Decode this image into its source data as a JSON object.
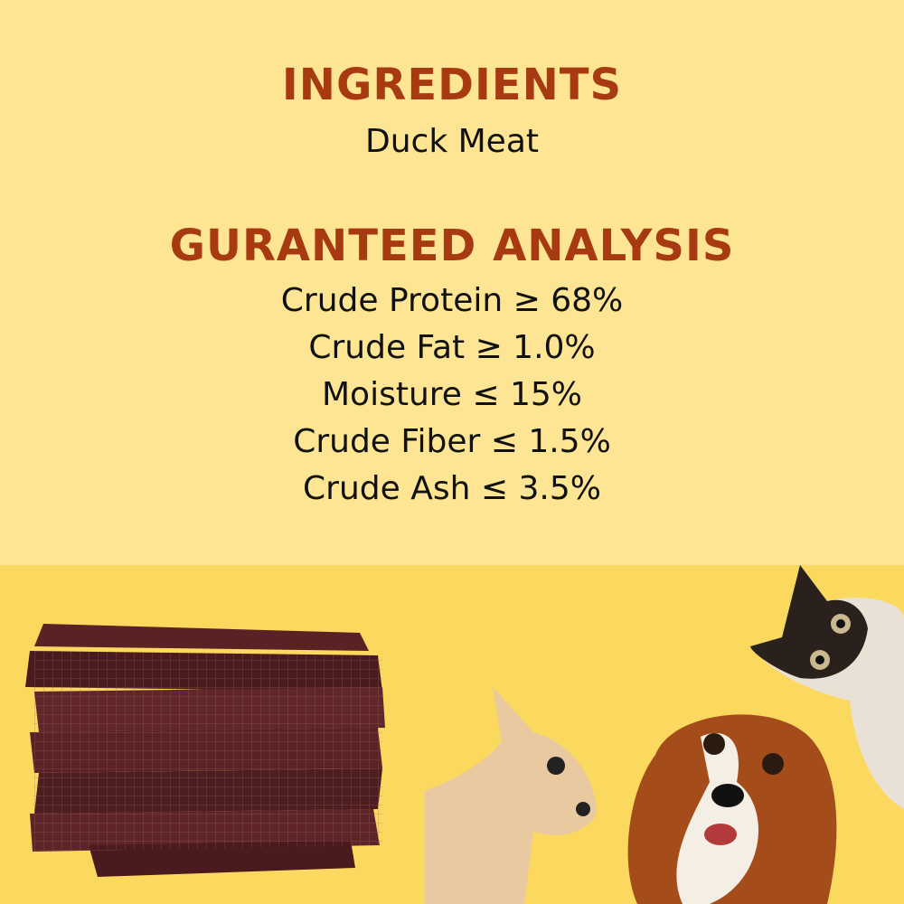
{
  "ingredients": {
    "heading": "INGREDIENTS",
    "text": "Duck Meat"
  },
  "analysis": {
    "heading": "GURANTEED ANALYSIS",
    "items": [
      "Crude Protein ≥ 68%",
      "Crude Fat ≥ 1.0%",
      "Moisture ≤ 15%",
      "Crude Fiber ≤ 1.5%",
      "Crude Ash ≤ 3.5%"
    ]
  },
  "colors": {
    "heading": "#a83a12",
    "top_background": "#fde593",
    "bottom_background": "#fbd95f"
  },
  "images": [
    "duck-jerky-photo",
    "cat-photo",
    "puppy-photo",
    "spaniel-photo"
  ]
}
